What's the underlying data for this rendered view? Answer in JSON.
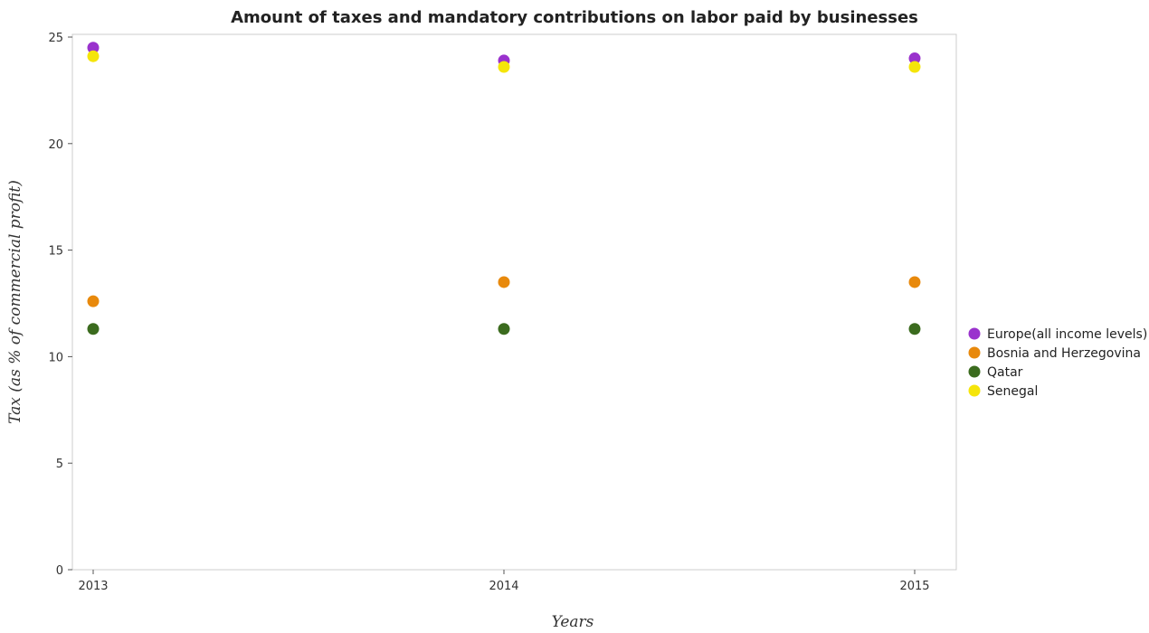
{
  "chart_data": {
    "type": "scatter",
    "title": "Amount of taxes and mandatory contributions on labor paid by businesses",
    "xlabel": "Years",
    "ylabel": "Tax (as % of commercial profit)",
    "categories": [
      "2013",
      "2014",
      "2015"
    ],
    "ylim": [
      0,
      25
    ],
    "yticks": [
      0,
      5,
      10,
      15,
      20,
      25
    ],
    "grid": false,
    "legend_position": "right",
    "series": [
      {
        "name": "Europe(all income levels)",
        "color": "#9a32cd",
        "values": [
          24.5,
          23.9,
          24.0
        ]
      },
      {
        "name": "Bosnia and Herzegovina",
        "color": "#e8890c",
        "values": [
          12.6,
          13.5,
          13.5
        ]
      },
      {
        "name": "Qatar",
        "color": "#3b6b1e",
        "values": [
          11.3,
          11.3,
          11.3
        ]
      },
      {
        "name": "Senegal",
        "color": "#f5e50a",
        "values": [
          24.1,
          23.6,
          23.6
        ]
      }
    ]
  }
}
